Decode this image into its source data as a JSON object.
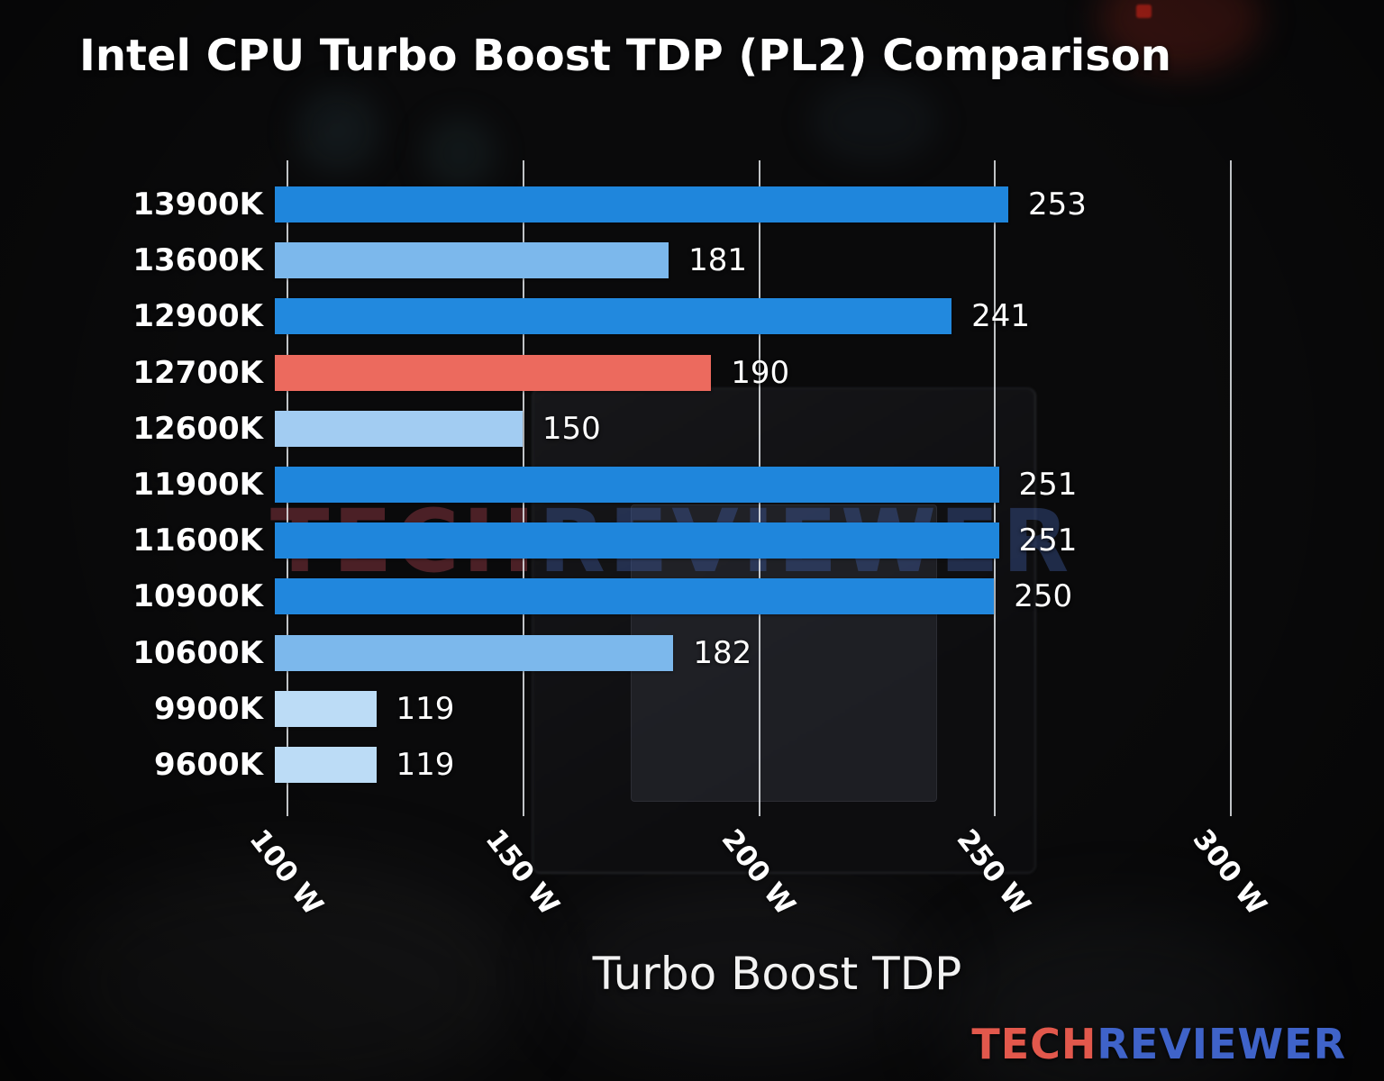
{
  "chart_data": {
    "type": "bar",
    "orientation": "horizontal",
    "title": "Intel CPU Turbo Boost TDP (PL2) Comparison",
    "xlabel": "Turbo Boost TDP",
    "categories": [
      "13900K",
      "13600K",
      "12900K",
      "12700K",
      "12600K",
      "11900K",
      "11600K",
      "10900K",
      "10600K",
      "9900K",
      "9600K"
    ],
    "values": [
      253,
      181,
      241,
      190,
      150,
      251,
      251,
      250,
      182,
      119,
      119
    ],
    "value_labels": [
      "253",
      "181",
      "241",
      "190",
      "150",
      "251",
      "251",
      "250",
      "182",
      "119",
      "119"
    ],
    "bar_colors": [
      "#1f86dc",
      "#7cb8ec",
      "#2289de",
      "#ec6a5e",
      "#a2ccf2",
      "#1f86dc",
      "#1f86dc",
      "#2187dd",
      "#7cb8ec",
      "#bcdcf6",
      "#bcdcf6"
    ],
    "highlight": {
      "category": "12700K",
      "color": "#ec6a5e",
      "note": "highlighted bar"
    },
    "axis": {
      "min": 97.5,
      "max": 310.5,
      "tick_values": [
        100,
        150,
        200,
        250,
        300
      ],
      "tick_labels": [
        "100 W",
        "150 W",
        "200 W",
        "250 W",
        "300 W"
      ],
      "grid": true,
      "unit": "W"
    },
    "legend": "none"
  },
  "watermark": {
    "part1": "TECH",
    "part2": "REVIEWER"
  },
  "logo": {
    "part1": "TECH",
    "part2": "REVIEWER",
    "part1_color": "#e2584c",
    "part2_color": "#3f63c9"
  }
}
